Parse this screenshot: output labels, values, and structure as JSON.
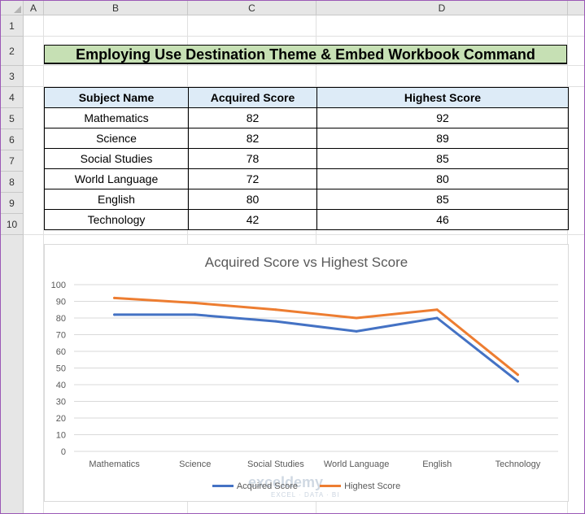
{
  "columns": [
    "A",
    "B",
    "C",
    "D"
  ],
  "rows": [
    "1",
    "2",
    "3",
    "4",
    "5",
    "6",
    "7",
    "8",
    "9",
    "10"
  ],
  "title": "Employing Use Destination Theme & Embed Workbook Command",
  "table": {
    "headers": [
      "Subject Name",
      "Acquired Score",
      "Highest Score"
    ],
    "rows": [
      [
        "Mathematics",
        "82",
        "92"
      ],
      [
        "Science",
        "82",
        "89"
      ],
      [
        "Social Studies",
        "78",
        "85"
      ],
      [
        "World Language",
        "72",
        "80"
      ],
      [
        "English",
        "80",
        "85"
      ],
      [
        "Technology",
        "42",
        "46"
      ]
    ]
  },
  "watermark": {
    "text": "exceldemy",
    "sub": "EXCEL · DATA · BI"
  },
  "colors": {
    "acquired": "#4472c4",
    "highest": "#ed7d31",
    "title_fill": "#c6e0b4",
    "header_fill": "#ddebf7"
  },
  "chart_data": {
    "type": "line",
    "title": "Acquired Score vs Highest Score",
    "categories": [
      "Mathematics",
      "Science",
      "Social Studies",
      "World Language",
      "English",
      "Technology"
    ],
    "series": [
      {
        "name": "Acquired Score",
        "values": [
          82,
          82,
          78,
          72,
          80,
          42
        ],
        "color": "#4472c4"
      },
      {
        "name": "Highest Score",
        "values": [
          92,
          89,
          85,
          80,
          85,
          46
        ],
        "color": "#ed7d31"
      }
    ],
    "ylim": [
      0,
      100
    ],
    "yticks": [
      "0",
      "10",
      "20",
      "30",
      "40",
      "50",
      "60",
      "70",
      "80",
      "90",
      "100"
    ],
    "grid": true,
    "legend": "bottom"
  }
}
